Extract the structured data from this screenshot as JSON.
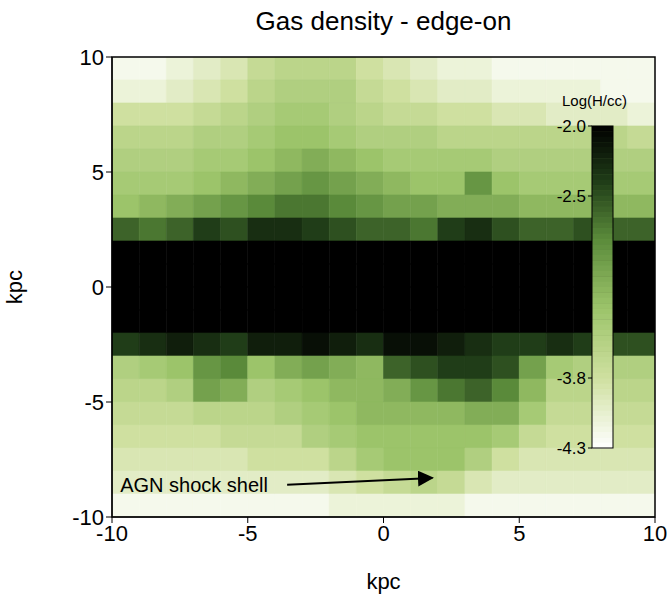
{
  "chart_data": {
    "type": "heatmap",
    "title": "Gas density - edge-on",
    "x_label": "kpc",
    "y_label": "kpc",
    "xlim": [
      -10,
      10
    ],
    "xticks": [
      -10,
      -5,
      0,
      5,
      10
    ],
    "ylim": [
      -10,
      10
    ],
    "yticks": [
      -10,
      -5,
      0,
      5,
      10
    ],
    "x_edges": [
      -10,
      -9,
      -8,
      -7,
      -6,
      -5,
      -4,
      -3,
      -2,
      -1,
      0,
      1,
      2,
      3,
      4,
      5,
      6,
      7,
      8,
      9,
      10
    ],
    "y_edges": [
      10,
      9,
      8,
      7,
      6,
      5,
      4,
      3,
      2,
      1,
      0,
      -1,
      -2,
      -3,
      -4,
      -5,
      -6,
      -7,
      -8,
      -9,
      -10
    ],
    "cells": [
      [
        -4.2,
        -4.2,
        -4.1,
        -4.0,
        -3.9,
        -3.7,
        -3.6,
        -3.6,
        -3.6,
        -3.8,
        -3.9,
        -4.0,
        -4.1,
        -4.1,
        -4.2,
        -4.2,
        -4.2,
        -4.2,
        -4.2,
        -4.2
      ],
      [
        -4.1,
        -4.1,
        -4.0,
        -3.9,
        -3.8,
        -3.6,
        -3.5,
        -3.5,
        -3.5,
        -3.7,
        -3.8,
        -3.9,
        -4.0,
        -4.0,
        -4.1,
        -4.1,
        -4.1,
        -4.1,
        -4.2,
        -4.2
      ],
      [
        -3.8,
        -3.8,
        -3.8,
        -3.7,
        -3.6,
        -3.5,
        -3.4,
        -3.4,
        -3.5,
        -3.6,
        -3.7,
        -3.7,
        -3.8,
        -3.8,
        -3.9,
        -3.9,
        -4.0,
        -4.0,
        -4.0,
        -4.1
      ],
      [
        -3.6,
        -3.6,
        -3.6,
        -3.5,
        -3.5,
        -3.4,
        -3.3,
        -3.3,
        -3.4,
        -3.5,
        -3.5,
        -3.5,
        -3.6,
        -3.6,
        -3.6,
        -3.6,
        -3.6,
        -3.6,
        -3.6,
        -3.7
      ],
      [
        -3.5,
        -3.5,
        -3.5,
        -3.4,
        -3.4,
        -3.3,
        -3.2,
        -3.1,
        -3.2,
        -3.3,
        -3.4,
        -3.4,
        -3.4,
        -3.4,
        -3.5,
        -3.5,
        -3.5,
        -3.5,
        -3.5,
        -3.5
      ],
      [
        -3.4,
        -3.4,
        -3.4,
        -3.3,
        -3.2,
        -3.1,
        -3.0,
        -2.9,
        -3.0,
        -3.1,
        -3.2,
        -3.3,
        -3.3,
        -2.9,
        -3.3,
        -3.4,
        -3.4,
        -3.4,
        -3.4,
        -3.4
      ],
      [
        -3.3,
        -3.2,
        -3.1,
        -3.0,
        -2.9,
        -2.8,
        -2.7,
        -2.7,
        -2.8,
        -2.9,
        -3.0,
        -3.0,
        -3.1,
        -3.1,
        -3.1,
        -3.2,
        -3.2,
        -3.2,
        -3.2,
        -3.2
      ],
      [
        -2.6,
        -2.7,
        -2.6,
        -2.4,
        -2.5,
        -2.3,
        -2.3,
        -2.4,
        -2.5,
        -2.6,
        -2.6,
        -2.7,
        -2.4,
        -2.3,
        -2.5,
        -2.6,
        -2.6,
        -2.5,
        -2.6,
        -2.6
      ],
      [
        -2.0,
        -2.0,
        -2.0,
        -2.0,
        -2.0,
        -2.0,
        -2.0,
        -2.0,
        -2.0,
        -2.0,
        -2.0,
        -2.0,
        -2.0,
        -2.0,
        -2.0,
        -2.0,
        -2.0,
        -2.0,
        -2.0,
        -2.0
      ],
      [
        -2.0,
        -2.0,
        -2.0,
        -2.0,
        -2.0,
        -2.0,
        -2.0,
        -2.0,
        -2.0,
        -2.0,
        -2.0,
        -2.0,
        -2.0,
        -2.0,
        -2.0,
        -2.0,
        -2.0,
        -2.0,
        -2.0,
        -2.0
      ],
      [
        -2.0,
        -2.0,
        -2.0,
        -2.0,
        -2.0,
        -2.0,
        -2.0,
        -2.0,
        -2.0,
        -2.0,
        -2.0,
        -2.0,
        -2.0,
        -2.0,
        -2.0,
        -2.0,
        -2.0,
        -2.0,
        -2.0,
        -2.0
      ],
      [
        -2.0,
        -2.0,
        -2.0,
        -2.0,
        -2.0,
        -2.0,
        -2.0,
        -2.0,
        -2.0,
        -2.0,
        -2.0,
        -2.0,
        -2.0,
        -2.0,
        -2.0,
        -2.0,
        -2.0,
        -2.0,
        -2.0,
        -2.0
      ],
      [
        -2.4,
        -2.3,
        -2.2,
        -2.3,
        -2.4,
        -2.2,
        -2.2,
        -2.1,
        -2.2,
        -2.3,
        -2.1,
        -2.1,
        -2.2,
        -2.3,
        -2.4,
        -2.4,
        -2.3,
        -2.4,
        -2.5,
        -2.5
      ],
      [
        -3.5,
        -3.4,
        -3.3,
        -2.9,
        -2.8,
        -3.3,
        -3.1,
        -3.0,
        -3.1,
        -3.2,
        -2.6,
        -2.5,
        -2.4,
        -2.4,
        -2.5,
        -3.0,
        -3.4,
        -3.5,
        -3.5,
        -3.5
      ],
      [
        -3.6,
        -3.6,
        -3.5,
        -3.0,
        -3.1,
        -3.5,
        -3.4,
        -3.3,
        -3.2,
        -3.2,
        -3.1,
        -2.9,
        -2.7,
        -2.6,
        -2.8,
        -3.2,
        -3.6,
        -3.6,
        -3.6,
        -3.6
      ],
      [
        -3.7,
        -3.7,
        -3.7,
        -3.6,
        -3.6,
        -3.6,
        -3.5,
        -3.4,
        -3.3,
        -3.2,
        -3.2,
        -3.2,
        -3.2,
        -3.1,
        -3.1,
        -3.4,
        -3.7,
        -3.7,
        -3.7,
        -3.7
      ],
      [
        -3.8,
        -3.8,
        -3.8,
        -3.8,
        -3.7,
        -3.7,
        -3.7,
        -3.5,
        -3.4,
        -3.3,
        -3.3,
        -3.3,
        -3.3,
        -3.3,
        -3.4,
        -3.7,
        -3.8,
        -3.8,
        -3.8,
        -3.8
      ],
      [
        -3.9,
        -3.9,
        -3.9,
        -3.9,
        -3.9,
        -3.8,
        -3.8,
        -3.8,
        -3.6,
        -3.4,
        -3.3,
        -3.3,
        -3.3,
        -3.5,
        -3.8,
        -3.9,
        -3.9,
        -3.9,
        -3.9,
        -3.9
      ],
      [
        -4.0,
        -4.0,
        -4.0,
        -4.0,
        -4.0,
        -4.0,
        -4.0,
        -4.0,
        -3.9,
        -3.8,
        -3.7,
        -3.6,
        -3.7,
        -3.9,
        -4.0,
        -4.0,
        -4.0,
        -4.0,
        -4.0,
        -4.0
      ],
      [
        -4.2,
        -4.2,
        -4.2,
        -4.2,
        -4.2,
        -4.2,
        -4.2,
        -4.2,
        -4.1,
        -4.1,
        -4.1,
        -4.1,
        -4.1,
        -4.2,
        -4.2,
        -4.2,
        -4.2,
        -4.2,
        -4.2,
        -4.2
      ]
    ],
    "colorbar": {
      "label": "Log(H/cc)",
      "range": [
        -4.3,
        -2.0
      ],
      "ticks": [
        {
          "value": -2.0,
          "label": "-2.0"
        },
        {
          "value": -2.5,
          "label": "-2.5"
        },
        {
          "value": -3.8,
          "label": "-3.8"
        },
        {
          "value": -4.3,
          "label": "-4.3"
        }
      ]
    },
    "annotations": [
      {
        "text": "AGN shock shell",
        "xy": [
          1.8,
          -8.3
        ],
        "xytext": [
          -9.7,
          -8.6
        ]
      }
    ]
  }
}
